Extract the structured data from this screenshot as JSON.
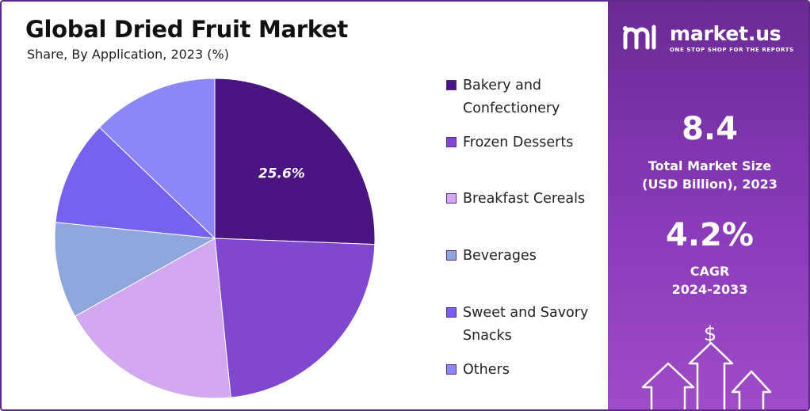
{
  "chart_data": {
    "type": "pie",
    "title": "Global Dried Fruit Market",
    "subtitle": "Share, By Application, 2023 (%)",
    "slices": [
      {
        "label": "Bakery and Confectionery",
        "value": 25.6,
        "data_label": "25.6%",
        "color": "#4a1580"
      },
      {
        "label": "Frozen Desserts",
        "value": 22.8,
        "data_label": "",
        "color": "#8047cf"
      },
      {
        "label": "Breakfast Cereals",
        "value": 18.5,
        "data_label": "",
        "color": "#d2a8f0"
      },
      {
        "label": "Beverages",
        "value": 9.7,
        "data_label": "",
        "color": "#8fa6dc"
      },
      {
        "label": "Sweet and Savory Snacks",
        "value": 10.6,
        "data_label": "",
        "color": "#7762f0"
      },
      {
        "label": "Others",
        "value": 12.8,
        "data_label": "",
        "color": "#8b87f6"
      }
    ],
    "legend_position": "right",
    "start_angle_deg": 0,
    "direction": "clockwise"
  },
  "legend": {
    "items": [
      {
        "line1": "Bakery and",
        "line2": "Confectionery",
        "color": "#4a1580"
      },
      {
        "line1": "Frozen Desserts",
        "line2": "",
        "color": "#8047cf"
      },
      {
        "line1": "Breakfast Cereals",
        "line2": "",
        "color": "#d2a8f0"
      },
      {
        "line1": "Beverages",
        "line2": "",
        "color": "#8fa6dc"
      },
      {
        "line1": "Sweet and Savory",
        "line2": "Snacks",
        "color": "#7762f0"
      },
      {
        "line1": "Others",
        "line2": "",
        "color": "#8b87f6"
      }
    ]
  },
  "panel": {
    "logo_text": "market.us",
    "logo_tagline": "ONE STOP SHOP FOR THE REPORTS",
    "market_size_value": "8.4",
    "market_size_label_1": "Total Market Size",
    "market_size_label_2": "(USD Billion), 2023",
    "cagr_value": "4.2%",
    "cagr_label_1": "CAGR",
    "cagr_label_2": "2024-2033",
    "dollar_symbol": "$",
    "icons": [
      "growth-arrows-icon",
      "dollar-icon",
      "market-us-logo-icon"
    ]
  },
  "colors": {
    "panel_top": "#6a2a95",
    "panel_bottom": "#a04cc7",
    "border": "#5b2a86"
  }
}
